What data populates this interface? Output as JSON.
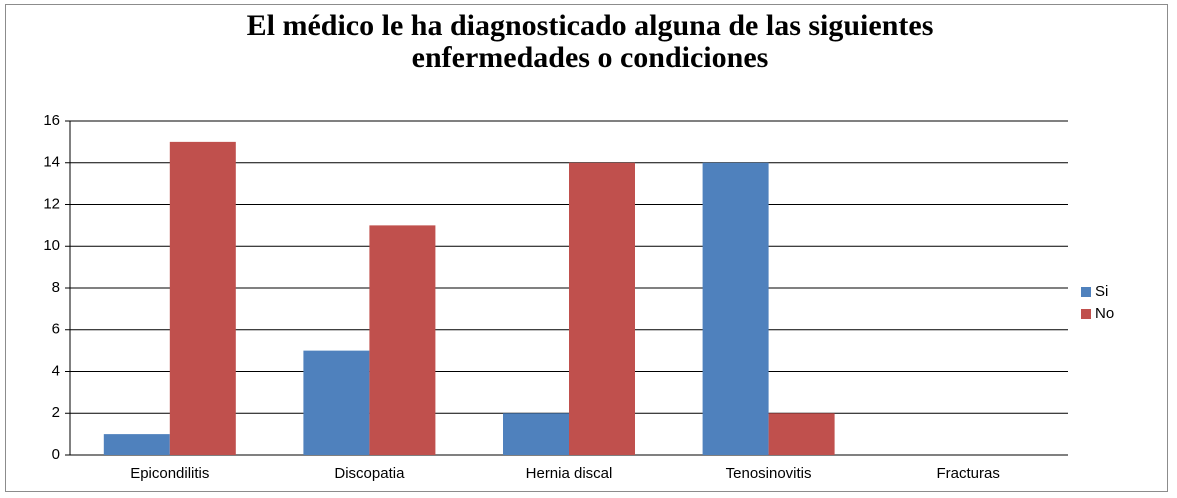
{
  "chart_data": {
    "type": "bar",
    "title": "El médico le ha diagnosticado alguna de las siguientes enfermedades o condiciones",
    "categories": [
      "Epicondilitis",
      "Discopatia",
      "Hernia discal",
      "Tenosinovitis",
      "Fracturas"
    ],
    "series": [
      {
        "name": "Si",
        "color": "#4f81bd",
        "values": [
          1,
          5,
          2,
          14,
          0
        ]
      },
      {
        "name": "No",
        "color": "#c0504d",
        "values": [
          15,
          11,
          14,
          2,
          0
        ]
      }
    ],
    "ylim": [
      0,
      16
    ],
    "yticks": [
      0,
      2,
      4,
      6,
      8,
      10,
      12,
      14,
      16
    ],
    "grid": true,
    "legend": "right"
  }
}
